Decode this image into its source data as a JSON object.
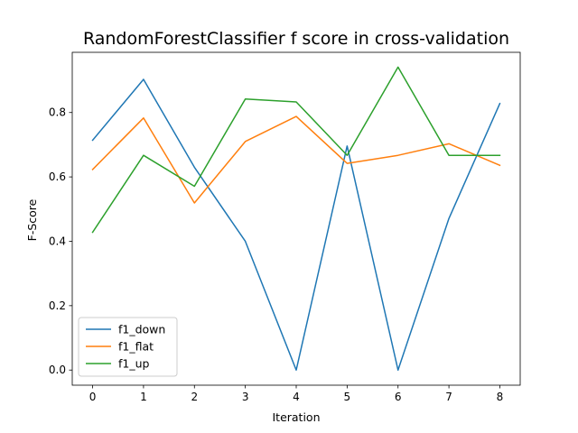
{
  "chart_data": {
    "type": "line",
    "title": "RandomForestClassifier f score in cross-validation",
    "xlabel": "Iteration",
    "ylabel": "F-Score",
    "x": [
      0,
      1,
      2,
      3,
      4,
      5,
      6,
      7,
      8
    ],
    "xticks": [
      "0",
      "1",
      "2",
      "3",
      "4",
      "5",
      "6",
      "7",
      "8"
    ],
    "yticks": [
      "0.0",
      "0.2",
      "0.4",
      "0.6",
      "0.8"
    ],
    "xlim": [
      -0.4,
      8.4
    ],
    "ylim": [
      -0.047,
      0.987
    ],
    "grid": false,
    "legend_position": "lower-left",
    "series": [
      {
        "name": "f1_down",
        "color": "#1f77b4",
        "values": [
          0.714,
          0.903,
          0.63,
          0.4,
          0.0,
          0.696,
          0.0,
          0.471,
          0.828
        ]
      },
      {
        "name": "f1_flat",
        "color": "#ff7f0e",
        "values": [
          0.623,
          0.783,
          0.519,
          0.71,
          0.788,
          0.642,
          0.667,
          0.703,
          0.636
        ]
      },
      {
        "name": "f1_up",
        "color": "#2ca02c",
        "values": [
          0.428,
          0.667,
          0.571,
          0.842,
          0.833,
          0.667,
          0.941,
          0.667,
          0.667
        ]
      }
    ]
  }
}
